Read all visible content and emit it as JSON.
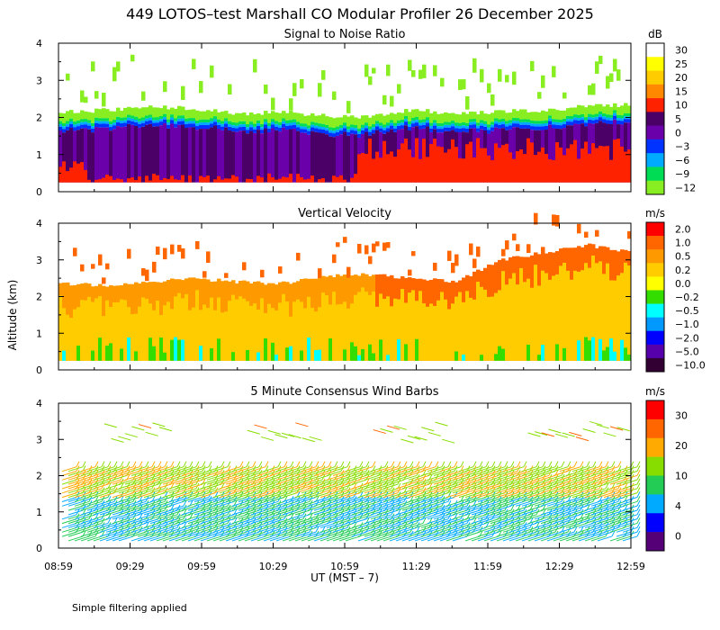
{
  "figure": {
    "title": "449 LOTOS–test Marshall CO Modular Profiler 26 December 2025",
    "ylabel": "Altitude (km)",
    "xlabel": "UT  (MST – 7)",
    "footnote": "Simple filtering applied"
  },
  "chart_data": [
    {
      "type": "heatmap",
      "title": "Signal to Noise Ratio",
      "x_ticks": [
        "08:59",
        "09:29",
        "09:59",
        "10:29",
        "10:59",
        "11:29",
        "11:59",
        "12:29",
        "12:59"
      ],
      "y_ticks": [
        "0",
        "1",
        "2",
        "3",
        "4"
      ],
      "ylim": [
        0,
        4
      ],
      "colorbar": {
        "unit": "dB",
        "labels": [
          "30",
          "25",
          "20",
          "15",
          "10",
          "5",
          "0",
          "−3",
          "−6",
          "−9",
          "−12"
        ],
        "colors": [
          "#ffffff",
          "#ffff00",
          "#ffcc00",
          "#ff8800",
          "#ff2200",
          "#4a0066",
          "#6a00aa",
          "#0033ff",
          "#00aaff",
          "#00dd55",
          "#88ee22"
        ]
      },
      "approx_features": {
        "data_bottom_km": 0.25,
        "top_boundary_km": [
          2.15,
          2.2,
          2.3,
          2.25,
          2.1,
          2.15,
          2.05,
          2.0,
          2.2,
          2.1,
          2.15,
          2.2,
          2.3,
          2.35
        ],
        "high_snr_region_km": [
          0.25,
          1.6
        ]
      }
    },
    {
      "type": "heatmap",
      "title": "Vertical Velocity",
      "x_ticks": [
        "08:59",
        "09:29",
        "09:59",
        "10:29",
        "10:59",
        "11:29",
        "11:59",
        "12:29",
        "12:59"
      ],
      "y_ticks": [
        "0",
        "1",
        "2",
        "3",
        "4"
      ],
      "ylim": [
        0,
        4
      ],
      "colorbar": {
        "unit": "m/s",
        "labels": [
          "2.0",
          "1.0",
          "0.5",
          "0.2",
          "0.0",
          "−0.2",
          "−0.5",
          "−1.0",
          "−2.0",
          "−5.0",
          "−10.0"
        ],
        "colors": [
          "#ff0000",
          "#ff6600",
          "#ff9900",
          "#ffcc00",
          "#ffff00",
          "#33dd00",
          "#00ffff",
          "#0099ff",
          "#0000ff",
          "#5500aa",
          "#330033"
        ]
      },
      "approx_features": {
        "data_bottom_km": 0.25,
        "top_boundary_km": [
          2.35,
          2.3,
          2.4,
          2.5,
          2.4,
          2.35,
          2.55,
          2.6,
          2.5,
          2.4,
          3.0,
          3.2,
          3.4,
          3.2
        ],
        "typical_value_m_per_s": 0.3
      }
    },
    {
      "type": "scatter",
      "title": "5 Minute Consensus Wind Barbs",
      "x_ticks": [
        "08:59",
        "09:29",
        "09:59",
        "10:29",
        "10:59",
        "11:29",
        "11:59",
        "12:29",
        "12:59"
      ],
      "y_ticks": [
        "0",
        "1",
        "2",
        "3",
        "4"
      ],
      "ylim": [
        0,
        4
      ],
      "colorbar": {
        "unit": "m/s",
        "labels": [
          "30",
          "20",
          "10",
          "4",
          "0"
        ],
        "colors": [
          "#ff0000",
          "#ff6600",
          "#ffaa00",
          "#88dd00",
          "#22cc55",
          "#00aaff",
          "#0000ff",
          "#550077"
        ]
      },
      "approx_features": {
        "barb_layers_km": [
          0.2,
          2.2
        ],
        "upper_patches_km": [
          3.0,
          3.5
        ],
        "speed_near_surface_m_per_s": 5,
        "speed_near_2km_m_per_s": 12
      }
    }
  ]
}
